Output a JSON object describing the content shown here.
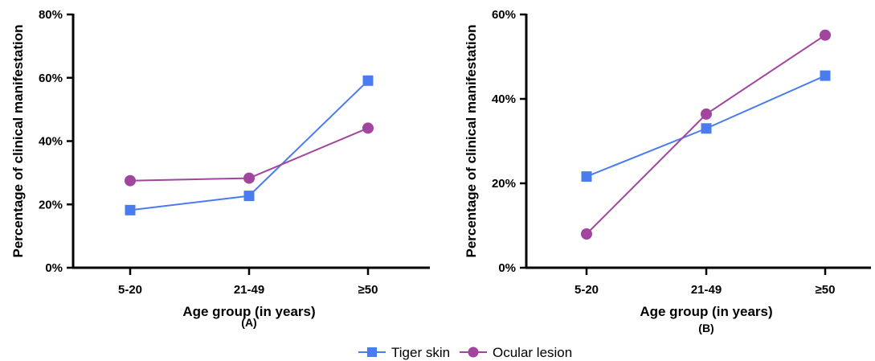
{
  "chart_data": [
    {
      "type": "line",
      "panel": "(A)",
      "categories": [
        "5-20",
        "21-49",
        "≥50"
      ],
      "series": [
        {
          "name": "Tiger skin",
          "values": [
            18.2,
            22.7,
            59.1
          ]
        },
        {
          "name": "Ocular lesion",
          "values": [
            27.5,
            28.3,
            44.1
          ]
        }
      ],
      "xlabel": "Age group (in years)",
      "ylabel": "Percentage of clinical manifestation",
      "ylim": [
        0,
        80
      ],
      "yticks": [
        "0%",
        "20%",
        "40%",
        "60%",
        "80%"
      ],
      "grid": false
    },
    {
      "type": "line",
      "panel": "(B)",
      "categories": [
        "5-20",
        "21-49",
        "≥50"
      ],
      "series": [
        {
          "name": "Tiger skin",
          "values": [
            21.6,
            33.0,
            45.5
          ]
        },
        {
          "name": "Ocular lesion",
          "values": [
            8.0,
            36.4,
            55.1
          ]
        }
      ],
      "xlabel": "Age group (in years)",
      "ylabel": "Percentage of clinical manifestation",
      "ylim": [
        0,
        60
      ],
      "yticks": [
        "0%",
        "20%",
        "40%",
        "60%"
      ],
      "grid": false
    }
  ],
  "legend": {
    "placement": "bottom-center",
    "items": [
      {
        "label": "Tiger skin",
        "color": "#4a7cf0",
        "marker": "square"
      },
      {
        "label": "Ocular lesion",
        "color": "#a2459e",
        "marker": "circle"
      }
    ]
  },
  "colors": {
    "tiger_skin": "#4a7cf0",
    "ocular_lesion": "#a2459e",
    "axis": "#000000"
  }
}
